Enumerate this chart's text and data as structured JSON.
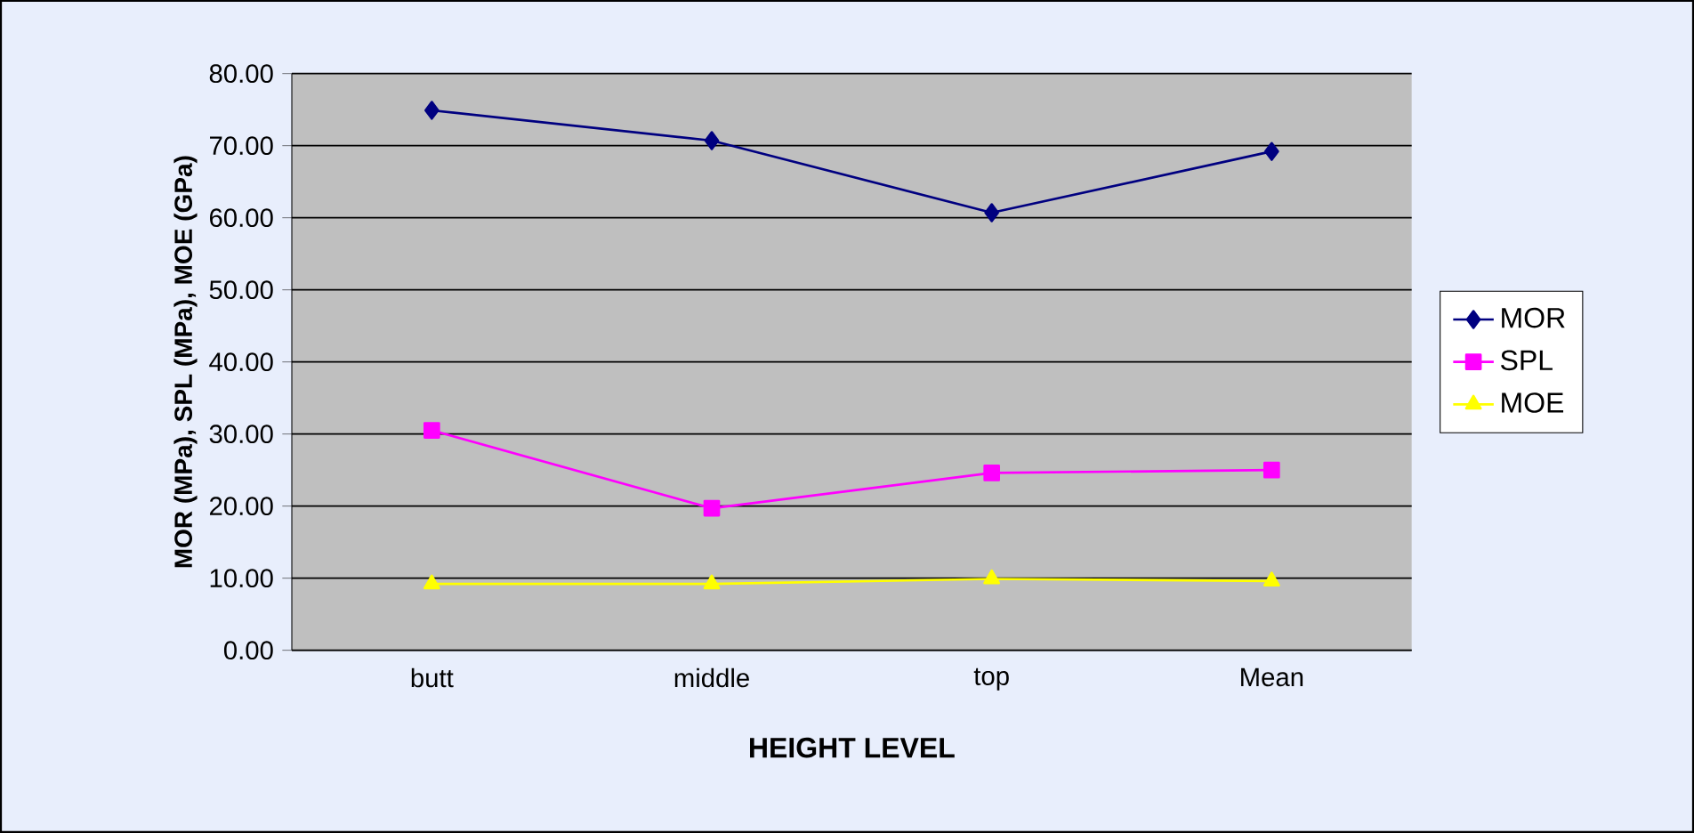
{
  "chart_data": {
    "type": "line",
    "xlabel": "HEIGHT LEVEL",
    "ylabel": "MOR (MPa), SPL (MPa), MOE (GPa)",
    "categories": [
      "butt",
      "middle",
      "top",
      "Mean"
    ],
    "series": [
      {
        "name": "MOR",
        "color": "#000080",
        "marker": "diamond",
        "values": [
          74.9,
          70.7,
          60.7,
          69.2
        ]
      },
      {
        "name": "SPL",
        "color": "#ff00ff",
        "marker": "square",
        "values": [
          30.5,
          19.7,
          24.6,
          25.0
        ]
      },
      {
        "name": "MOE",
        "color": "#ffff00",
        "marker": "triangle",
        "values": [
          9.2,
          9.2,
          9.9,
          9.6
        ]
      }
    ],
    "ylim": [
      0,
      80
    ],
    "yticks": [
      {
        "value": 0,
        "label": "0.00"
      },
      {
        "value": 10,
        "label": "10.00"
      },
      {
        "value": 20,
        "label": "20.00"
      },
      {
        "value": 30,
        "label": "30.00"
      },
      {
        "value": 40,
        "label": "40.00"
      },
      {
        "value": 50,
        "label": "50.00"
      },
      {
        "value": 60,
        "label": "60.00"
      },
      {
        "value": 70,
        "label": "70.00"
      },
      {
        "value": 80,
        "label": "80.00"
      }
    ],
    "grid": "y",
    "legend": "right",
    "line_style": "solid"
  }
}
